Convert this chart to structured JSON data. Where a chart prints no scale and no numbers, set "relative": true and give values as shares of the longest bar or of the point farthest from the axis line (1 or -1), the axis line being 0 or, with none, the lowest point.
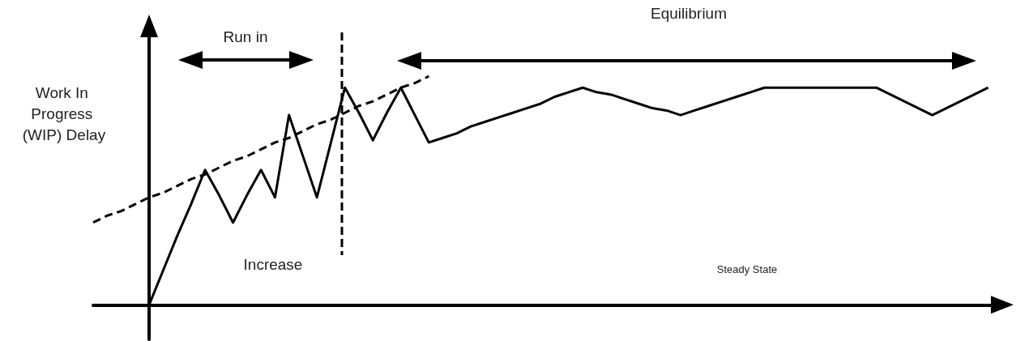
{
  "chart_data": {
    "type": "line",
    "ylabel": "Work In Progress (WIP) Delay",
    "relative": true,
    "marker": "none",
    "categories": [
      null,
      null,
      null,
      null,
      null,
      null,
      null,
      null,
      null,
      null,
      null,
      null,
      null,
      null,
      null,
      null,
      null,
      null,
      null,
      null,
      null,
      null,
      null,
      null,
      null,
      null,
      null,
      null,
      null,
      null,
      null,
      null,
      null,
      null,
      null,
      null,
      null,
      null,
      null,
      null,
      null,
      null,
      null,
      null,
      null,
      null,
      null,
      null,
      null,
      null,
      null,
      null,
      null,
      null,
      null,
      null,
      null,
      null,
      null,
      null,
      null,
      null,
      null,
      null,
      null
    ],
    "series": [
      {
        "color": "#000000",
        "line_style": "solid",
        "values": [
          null,
          null,
          null,
          null,
          0,
          0.15,
          0.3,
          0.44,
          0.59,
          0.48,
          0.36,
          0.48,
          0.59,
          0.47,
          0.83,
          0.65,
          0.47,
          0.71,
          0.95,
          0.84,
          0.72,
          0.84,
          0.95,
          0.83,
          0.71,
          0.73,
          0.75,
          0.78,
          0.8,
          0.82,
          0.84,
          0.86,
          0.88,
          0.91,
          0.93,
          0.95,
          0.93,
          0.92,
          0.9,
          0.88,
          0.86,
          0.85,
          0.83,
          0.85,
          0.87,
          0.89,
          0.91,
          0.93,
          0.95,
          0.95,
          0.95,
          0.95,
          0.95,
          0.95,
          0.95,
          0.95,
          0.95,
          0.92,
          0.89,
          0.86,
          0.83,
          0.86,
          0.89,
          0.92,
          0.95
        ]
      },
      {
        "type": "line",
        "color": "#000000",
        "line_style": "dashed",
        "values": [
          0.36,
          0.39,
          0.41,
          0.44,
          0.47,
          0.49,
          0.52,
          0.55,
          0.57,
          0.6,
          0.63,
          0.65,
          0.68,
          0.71,
          0.73,
          0.76,
          0.79,
          0.81,
          0.84,
          0.87,
          0.89,
          0.92,
          0.95,
          0.97,
          1,
          null,
          null,
          null,
          null,
          null,
          null,
          null,
          null,
          null,
          null,
          null,
          null,
          null,
          null,
          null,
          null,
          null,
          null,
          null,
          null,
          null,
          null,
          null,
          null,
          null,
          null,
          null,
          null,
          null,
          null,
          null,
          null,
          null,
          null,
          null,
          null,
          null,
          null,
          null,
          null
        ]
      }
    ],
    "annotations": [
      "Run in",
      "Equilibrium",
      "Increase",
      "Steady State"
    ]
  }
}
